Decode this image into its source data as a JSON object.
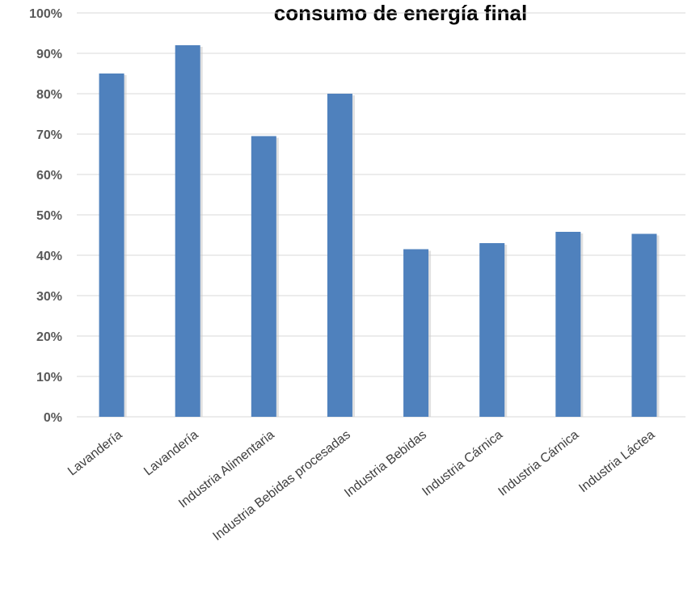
{
  "chart_data": {
    "type": "bar",
    "title": "consumo de energía final",
    "xlabel": "",
    "ylabel": "",
    "categories": [
      "Lavandería",
      "Lavandería",
      "Industria Alimentaria",
      "Industria Bebidas procesadas",
      "Industria Bebidas",
      "Industria Cárnica",
      "Industria Cárnica",
      "Industria Láctea"
    ],
    "values": [
      85,
      92,
      69.5,
      80,
      41.5,
      43,
      45.8,
      45.3
    ],
    "ylim": [
      0,
      100
    ],
    "yticks": [
      0,
      10,
      20,
      30,
      40,
      50,
      60,
      70,
      80,
      90,
      100
    ],
    "ytick_labels": [
      "0%",
      "10%",
      "20%",
      "30%",
      "40%",
      "50%",
      "60%",
      "70%",
      "80%",
      "90%",
      "100%"
    ],
    "grid": true,
    "legend": "none",
    "bar_color": "#4f81bd",
    "grid_color": "#d9d9d9"
  }
}
